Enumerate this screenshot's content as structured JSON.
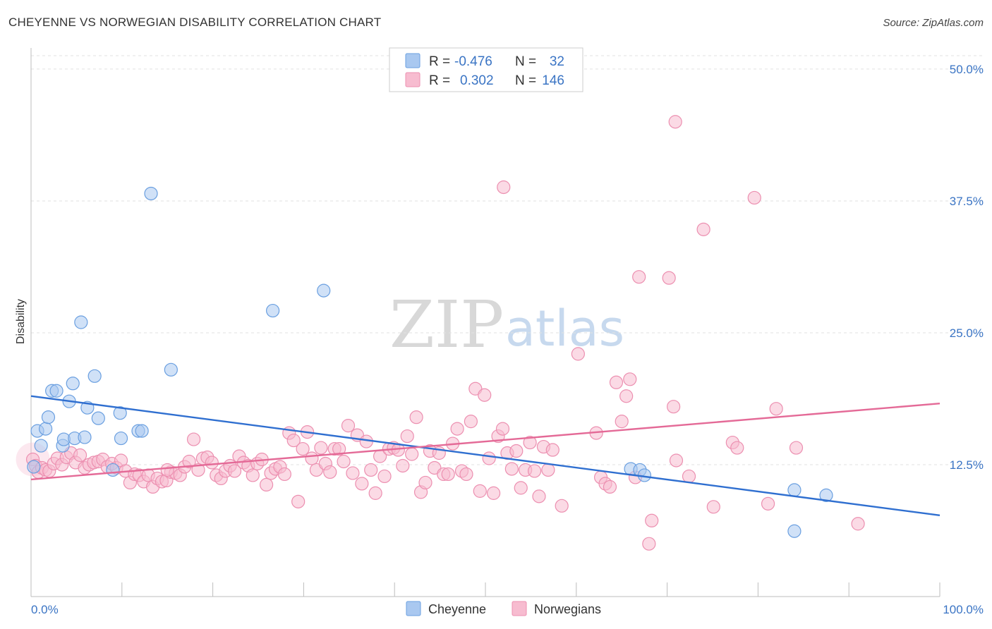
{
  "title": "CHEYENNE VS NORWEGIAN DISABILITY CORRELATION CHART",
  "source": "Source: ZipAtlas.com",
  "watermark": {
    "zip": "ZIP",
    "atlas": "atlas"
  },
  "legend": {
    "rows": [
      {
        "r_label": "R =",
        "r_value": "-0.476",
        "n_label": "N =",
        "n_value": "32",
        "color": "#a9c8f0",
        "stroke": "#6a9fe0"
      },
      {
        "r_label": "R =",
        "r_value": "0.302",
        "n_label": "N =",
        "n_value": "146",
        "color": "#f7bcd0",
        "stroke": "#ec8fb0"
      }
    ]
  },
  "bottom_legend": [
    {
      "label": "Cheyenne",
      "color": "#a9c8f0",
      "stroke": "#6a9fe0"
    },
    {
      "label": "Norwegians",
      "color": "#f7bcd0",
      "stroke": "#ec8fb0"
    }
  ],
  "chart_data": {
    "type": "scatter",
    "title": "CHEYENNE VS NORWEGIAN DISABILITY CORRELATION CHART",
    "xlabel": "",
    "ylabel": "Disability",
    "xlim": [
      0,
      100
    ],
    "ylim": [
      0,
      52
    ],
    "x_tick_labels": [
      "0.0%",
      "100.0%"
    ],
    "y_ticks": [
      12.5,
      25.0,
      37.5,
      50.0
    ],
    "y_tick_labels": [
      "12.5%",
      "25.0%",
      "37.5%",
      "50.0%"
    ],
    "grid": "horizontal dashed",
    "legend_position": "top-center",
    "series": [
      {
        "name": "Cheyenne",
        "color": "#6a9fe0",
        "fill": "#a9c8f0",
        "trend": {
          "x": [
            0,
            100
          ],
          "y": [
            19.0,
            7.7
          ]
        },
        "points": [
          [
            0.3,
            12.3
          ],
          [
            0.7,
            15.7
          ],
          [
            1.1,
            14.3
          ],
          [
            1.6,
            15.9
          ],
          [
            1.9,
            17.0
          ],
          [
            2.3,
            19.5
          ],
          [
            2.8,
            19.5
          ],
          [
            3.5,
            14.3
          ],
          [
            3.6,
            14.9
          ],
          [
            4.2,
            18.5
          ],
          [
            4.6,
            20.2
          ],
          [
            4.8,
            15.0
          ],
          [
            5.5,
            26.0
          ],
          [
            5.9,
            15.1
          ],
          [
            6.2,
            17.9
          ],
          [
            7.0,
            20.9
          ],
          [
            7.4,
            16.9
          ],
          [
            9.0,
            12.0
          ],
          [
            9.8,
            17.4
          ],
          [
            9.9,
            15.0
          ],
          [
            11.8,
            15.7
          ],
          [
            12.2,
            15.7
          ],
          [
            13.2,
            38.2
          ],
          [
            15.4,
            21.5
          ],
          [
            26.6,
            27.1
          ],
          [
            32.2,
            29.0
          ],
          [
            66.0,
            12.1
          ],
          [
            67.0,
            12.0
          ],
          [
            67.5,
            11.5
          ],
          [
            84.0,
            10.1
          ],
          [
            87.5,
            9.6
          ],
          [
            84.0,
            6.2
          ]
        ]
      },
      {
        "name": "Norwegians",
        "color": "#ec8fb0",
        "fill": "#f7bcd0",
        "trend": {
          "x": [
            0,
            100
          ],
          "y": [
            11.1,
            18.3
          ]
        },
        "points": [
          [
            0.2,
            13.0
          ],
          [
            0.5,
            12.4
          ],
          [
            0.8,
            11.8
          ],
          [
            1.2,
            12.2
          ],
          [
            1.6,
            12.0
          ],
          [
            2.0,
            11.9
          ],
          [
            2.5,
            12.6
          ],
          [
            2.9,
            13.1
          ],
          [
            3.4,
            12.5
          ],
          [
            3.9,
            13.2
          ],
          [
            4.4,
            13.6
          ],
          [
            4.9,
            12.7
          ],
          [
            5.4,
            13.4
          ],
          [
            5.9,
            12.2
          ],
          [
            6.4,
            12.5
          ],
          [
            6.9,
            12.7
          ],
          [
            7.4,
            12.8
          ],
          [
            7.9,
            13.0
          ],
          [
            8.4,
            12.3
          ],
          [
            8.9,
            12.6
          ],
          [
            9.4,
            12.2
          ],
          [
            9.9,
            12.9
          ],
          [
            10.4,
            11.9
          ],
          [
            10.9,
            10.8
          ],
          [
            11.4,
            11.6
          ],
          [
            11.9,
            11.5
          ],
          [
            12.4,
            10.9
          ],
          [
            12.9,
            11.5
          ],
          [
            13.4,
            10.4
          ],
          [
            13.9,
            11.2
          ],
          [
            14.4,
            10.9
          ],
          [
            14.9,
            11.0
          ],
          [
            15.4,
            11.8
          ],
          [
            15.9,
            11.7
          ],
          [
            16.4,
            11.5
          ],
          [
            16.9,
            12.3
          ],
          [
            17.4,
            12.8
          ],
          [
            17.9,
            14.9
          ],
          [
            18.4,
            12.0
          ],
          [
            18.9,
            13.1
          ],
          [
            19.4,
            13.2
          ],
          [
            19.9,
            12.7
          ],
          [
            20.4,
            11.5
          ],
          [
            20.9,
            11.2
          ],
          [
            21.4,
            11.9
          ],
          [
            21.9,
            12.4
          ],
          [
            22.4,
            11.9
          ],
          [
            22.9,
            13.3
          ],
          [
            23.4,
            12.7
          ],
          [
            23.9,
            12.4
          ],
          [
            24.4,
            11.5
          ],
          [
            24.9,
            12.6
          ],
          [
            25.4,
            13.0
          ],
          [
            25.9,
            10.6
          ],
          [
            26.4,
            11.7
          ],
          [
            26.9,
            12.1
          ],
          [
            27.4,
            12.3
          ],
          [
            27.9,
            11.6
          ],
          [
            28.4,
            15.5
          ],
          [
            28.9,
            14.8
          ],
          [
            29.4,
            9.0
          ],
          [
            29.9,
            14.0
          ],
          [
            30.4,
            15.6
          ],
          [
            30.9,
            13.1
          ],
          [
            31.4,
            12.0
          ],
          [
            31.9,
            14.1
          ],
          [
            32.4,
            12.6
          ],
          [
            32.9,
            11.8
          ],
          [
            33.4,
            14.0
          ],
          [
            33.9,
            14.0
          ],
          [
            34.4,
            12.8
          ],
          [
            34.9,
            16.2
          ],
          [
            35.4,
            11.7
          ],
          [
            35.9,
            15.3
          ],
          [
            36.4,
            10.7
          ],
          [
            36.9,
            14.7
          ],
          [
            37.4,
            12.0
          ],
          [
            37.9,
            9.8
          ],
          [
            38.4,
            13.3
          ],
          [
            38.9,
            11.4
          ],
          [
            39.4,
            14.0
          ],
          [
            39.9,
            14.1
          ],
          [
            40.4,
            13.9
          ],
          [
            40.9,
            12.4
          ],
          [
            41.4,
            15.2
          ],
          [
            41.9,
            13.5
          ],
          [
            42.4,
            17.0
          ],
          [
            42.9,
            9.9
          ],
          [
            43.4,
            10.8
          ],
          [
            43.9,
            13.8
          ],
          [
            44.4,
            12.2
          ],
          [
            44.9,
            13.6
          ],
          [
            45.4,
            11.6
          ],
          [
            45.9,
            11.6
          ],
          [
            46.4,
            14.5
          ],
          [
            46.9,
            15.9
          ],
          [
            47.4,
            11.9
          ],
          [
            47.9,
            11.6
          ],
          [
            48.4,
            16.6
          ],
          [
            48.9,
            19.7
          ],
          [
            49.4,
            10.0
          ],
          [
            49.9,
            19.1
          ],
          [
            50.4,
            13.1
          ],
          [
            50.9,
            9.8
          ],
          [
            51.4,
            15.2
          ],
          [
            51.9,
            15.9
          ],
          [
            52.4,
            13.6
          ],
          [
            52.9,
            12.1
          ],
          [
            53.4,
            13.8
          ],
          [
            53.9,
            10.3
          ],
          [
            54.4,
            12.0
          ],
          [
            54.9,
            14.6
          ],
          [
            55.4,
            11.9
          ],
          [
            55.9,
            9.5
          ],
          [
            56.4,
            14.2
          ],
          [
            56.9,
            12.0
          ],
          [
            57.4,
            13.9
          ],
          [
            58.4,
            8.6
          ],
          [
            60.2,
            23.0
          ],
          [
            62.2,
            15.5
          ],
          [
            62.7,
            11.3
          ],
          [
            63.2,
            10.7
          ],
          [
            63.7,
            10.4
          ],
          [
            64.4,
            20.3
          ],
          [
            65.0,
            16.6
          ],
          [
            65.5,
            19.0
          ],
          [
            65.9,
            20.6
          ],
          [
            66.5,
            11.3
          ],
          [
            66.9,
            30.3
          ],
          [
            68.0,
            5.0
          ],
          [
            68.3,
            7.2
          ],
          [
            70.2,
            30.2
          ],
          [
            70.7,
            18.0
          ],
          [
            70.9,
            45.0
          ],
          [
            71.0,
            12.9
          ],
          [
            72.4,
            11.4
          ],
          [
            74.0,
            34.8
          ],
          [
            75.1,
            8.5
          ],
          [
            77.2,
            14.6
          ],
          [
            77.7,
            14.1
          ],
          [
            79.6,
            37.8
          ],
          [
            81.1,
            8.8
          ],
          [
            82.0,
            17.8
          ],
          [
            84.2,
            14.1
          ],
          [
            91.0,
            6.9
          ],
          [
            52.0,
            38.8
          ],
          [
            15.0,
            12.0
          ]
        ]
      }
    ]
  }
}
